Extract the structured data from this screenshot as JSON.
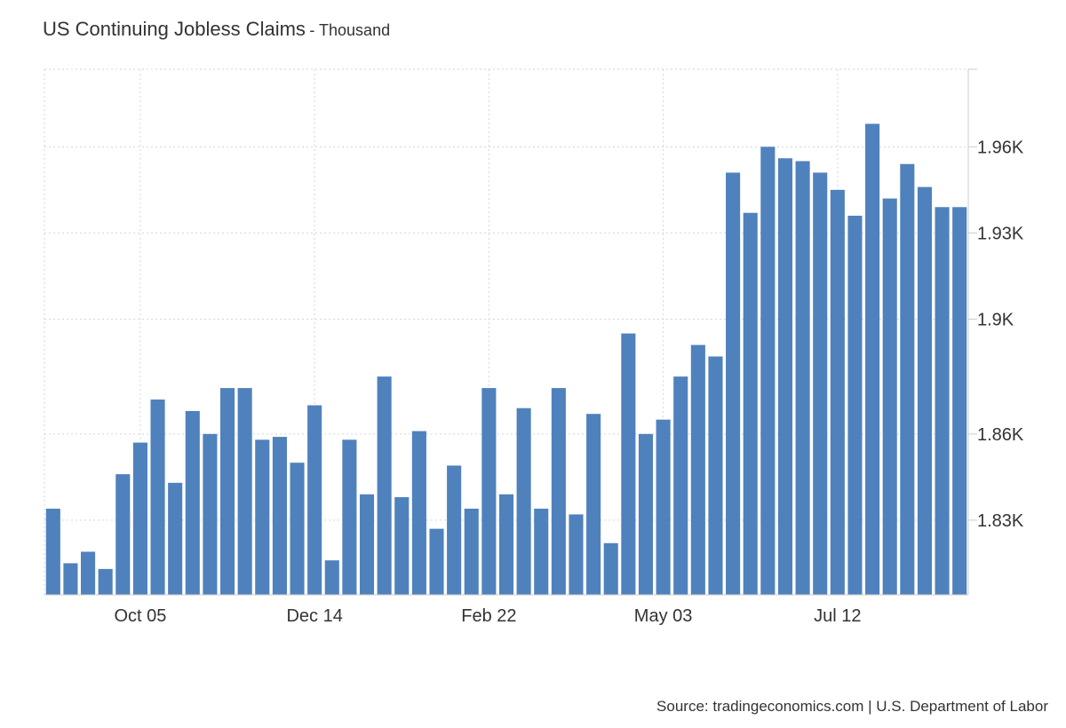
{
  "header": {
    "title": "US Continuing Jobless Claims",
    "subtitle": "- Thousand"
  },
  "footer": {
    "source": "Source: tradingeconomics.com | U.S. Department of Labor"
  },
  "colors": {
    "bar": "#4f81bd",
    "grid": "#d6d6d6",
    "axis": "#cccccc",
    "text": "#333333"
  },
  "chart_data": {
    "type": "bar",
    "title": "US Continuing Jobless Claims",
    "subtitle": "Thousand",
    "y_axis_position": "right",
    "ylim": [
      1804,
      1987
    ],
    "yticks": [
      1830,
      1860,
      1900,
      1930,
      1960
    ],
    "ytick_labels": [
      "1.83K",
      "1.86K",
      "1.9K",
      "1.93K",
      "1.96K"
    ],
    "xtick_labels": [
      {
        "label": "Oct 05",
        "index": 5
      },
      {
        "label": "Dec 14",
        "index": 15
      },
      {
        "label": "Feb 22",
        "index": 25
      },
      {
        "label": "May 03",
        "index": 35
      },
      {
        "label": "Jul 12",
        "index": 45
      }
    ],
    "grid": true,
    "legend": "none",
    "values": [
      1834,
      1815,
      1819,
      1813,
      1846,
      1857,
      1872,
      1843,
      1868,
      1860,
      1876,
      1876,
      1858,
      1859,
      1850,
      1870,
      1816,
      1858,
      1839,
      1880,
      1838,
      1861,
      1827,
      1849,
      1834,
      1876,
      1839,
      1869,
      1834,
      1876,
      1832,
      1867,
      1822,
      1895,
      1860,
      1865,
      1880,
      1891,
      1887,
      1951,
      1937,
      1960,
      1956,
      1955,
      1951,
      1945,
      1936,
      1968,
      1942,
      1954,
      1946,
      1939,
      1939
    ]
  }
}
